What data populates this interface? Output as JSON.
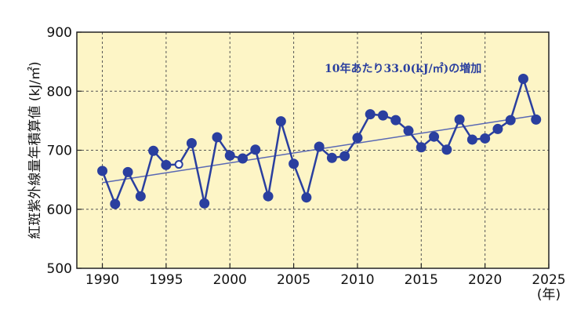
{
  "chart_data": {
    "type": "line",
    "title": "",
    "xlabel": "(年)",
    "ylabel": "紅斑紫外線量年積算値 (kJ/㎡)",
    "xlim": [
      1988,
      2025
    ],
    "ylim": [
      500,
      900
    ],
    "x_ticks": [
      1990,
      1995,
      2000,
      2005,
      2010,
      2015,
      2020,
      2025
    ],
    "y_ticks": [
      500,
      600,
      700,
      800,
      900
    ],
    "grid": true,
    "series": [
      {
        "name": "紅斑紫外線量年積算値",
        "x": [
          1990,
          1991,
          1992,
          1993,
          1994,
          1995,
          1996,
          1997,
          1998,
          1999,
          2000,
          2001,
          2002,
          2003,
          2004,
          2005,
          2006,
          2007,
          2008,
          2009,
          2010,
          2011,
          2012,
          2013,
          2014,
          2015,
          2016,
          2017,
          2018,
          2019,
          2020,
          2021,
          2022,
          2023,
          2024
        ],
        "values": [
          665,
          609,
          663,
          622,
          699,
          675,
          676,
          712,
          610,
          722,
          691,
          686,
          701,
          622,
          749,
          677,
          620,
          706,
          687,
          690,
          721,
          761,
          759,
          751,
          733,
          705,
          723,
          701,
          752,
          718,
          720,
          736,
          751,
          821,
          752
        ],
        "open_markers_x": [
          1996
        ]
      }
    ],
    "trend": {
      "name": "trend",
      "x": [
        1990,
        2024
      ],
      "values": [
        645,
        759
      ]
    },
    "annotation": {
      "text": "10年あたり33.0(kJ/㎡)の増加",
      "position": "top-right"
    },
    "colors": {
      "plot_background": "#fdf5c6",
      "line": "#2a3f9f",
      "marker": "#2a3f9f",
      "trend": "#5968b4",
      "annotation": "#2a3f9f",
      "grid": "#555555",
      "axis": "#222222"
    }
  }
}
